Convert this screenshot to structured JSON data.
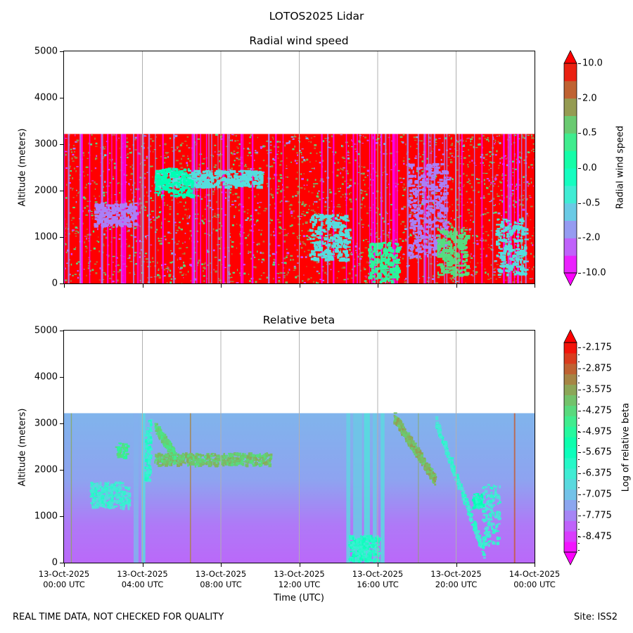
{
  "suptitle": "LOTOS2025 Lidar",
  "footer_left": "REAL TIME DATA, NOT CHECKED FOR QUALITY",
  "footer_right": "Site: ISS2",
  "chart_data": [
    {
      "type": "heatmap",
      "title": "Radial wind speed",
      "xlabel": "",
      "ylabel": "Altitude (meters)",
      "ylim": [
        0,
        5000
      ],
      "yticks": [
        "0",
        "1000",
        "2000",
        "3000",
        "4000",
        "5000"
      ],
      "x_range": [
        "13-Oct-2025 00:00 UTC",
        "14-Oct-2025 00:00 UTC"
      ],
      "data_top_altitude": 3220,
      "grid": "vertical at x ticks",
      "colorbar": {
        "label": "Radial wind speed",
        "levels": [
          "10.0",
          "2.0",
          "0.5",
          "0.0",
          "-0.5",
          "-2.0",
          "-10.0"
        ],
        "colormap": "rainbow",
        "extend": "both"
      },
      "features": [
        {
          "desc": "dominant positive (red) with vertical streaks",
          "value": 10.0
        },
        {
          "desc": "cyan layer near 2300 m",
          "time_hours": [
            3.5,
            10
          ],
          "altitude": 2300
        },
        {
          "desc": "blue/cyan patch near 1500 m",
          "time_hours": [
            1.5,
            3.5
          ],
          "altitude": 1500
        },
        {
          "desc": "descending blue feature",
          "time_hours": [
            17.5,
            19.5
          ],
          "altitude_from": 3000,
          "altitude_to": 500
        }
      ]
    },
    {
      "type": "heatmap",
      "title": "Relative beta",
      "xlabel": "Time (UTC)",
      "ylabel": "Altitude (meters)",
      "ylim": [
        0,
        5000
      ],
      "yticks": [
        "0",
        "1000",
        "2000",
        "3000",
        "4000",
        "5000"
      ],
      "xticks": [
        [
          "13-Oct-2025",
          "00:00 UTC"
        ],
        [
          "13-Oct-2025",
          "04:00 UTC"
        ],
        [
          "13-Oct-2025",
          "08:00 UTC"
        ],
        [
          "13-Oct-2025",
          "12:00 UTC"
        ],
        [
          "13-Oct-2025",
          "16:00 UTC"
        ],
        [
          "13-Oct-2025",
          "20:00 UTC"
        ],
        [
          "14-Oct-2025",
          "00:00 UTC"
        ]
      ],
      "data_top_altitude": 3220,
      "grid": "vertical at x ticks",
      "colorbar": {
        "label": "Log of relative beta",
        "levels": [
          "-2.175",
          "-2.875",
          "-3.575",
          "-4.275",
          "-4.975",
          "-5.675",
          "-6.375",
          "-7.075",
          "-7.775",
          "-8.475"
        ],
        "colormap": "rainbow",
        "extend": "both"
      },
      "features": [
        {
          "desc": "background cyan above 1500 m",
          "value": -7.4
        },
        {
          "desc": "blue below 1000 m",
          "value": -8.0
        },
        {
          "desc": "aerosol layer (orange/red)",
          "time_hours": [
            4.5,
            10.5
          ],
          "altitude": 2250,
          "value": -3.6
        },
        {
          "desc": "descending layer",
          "time_hours": [
            16.8,
            18.9
          ],
          "altitude_from": 3150,
          "altitude_to": 1800,
          "value": -3.6
        },
        {
          "desc": "near-surface plume",
          "time_hours": [
            14.5,
            16.0
          ],
          "altitude": 300,
          "value": -6.0
        }
      ]
    }
  ]
}
